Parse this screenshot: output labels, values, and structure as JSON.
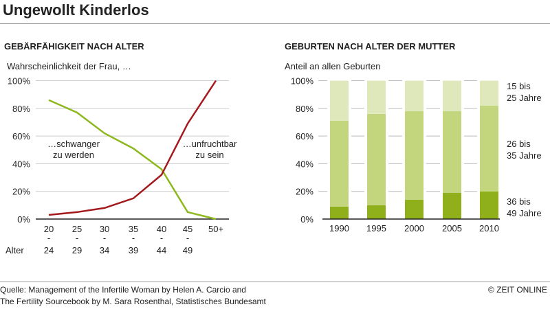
{
  "title": "Ungewollt Kinderlos",
  "source_lines": [
    "Quelle: Management of the Infertile Woman by Helen A. Carcio and",
    "The Fertility Sourcebook by M. Sara Rosenthal, Statistisches Bundesamt"
  ],
  "credit": "© ZEIT ONLINE",
  "chart_data": [
    {
      "type": "line",
      "title": "GEBÄRFÄHIGKEIT NACH ALTER",
      "subtitle": "Wahrscheinlichkeit der Frau, …",
      "xlabel": "Alter",
      "categories": [
        [
          "20",
          "-",
          "24"
        ],
        [
          "25",
          "-",
          "29"
        ],
        [
          "30",
          "-",
          "34"
        ],
        [
          "35",
          "-",
          "39"
        ],
        [
          "40",
          "-",
          "44"
        ],
        [
          "45",
          "-",
          "49"
        ],
        [
          "50+",
          "",
          ""
        ]
      ],
      "yticks": [
        "0%",
        "20%",
        "40%",
        "60%",
        "80%",
        "100%"
      ],
      "ylim": [
        0,
        100
      ],
      "grid": true,
      "series": [
        {
          "name": "…schwanger zu werden",
          "label_lines": [
            "…schwanger",
            "zu werden"
          ],
          "color": "#8db81e",
          "values": [
            86,
            77,
            62,
            51,
            36,
            5,
            0
          ]
        },
        {
          "name": "…unfruchtbar zu sein",
          "label_lines": [
            "…unfruchtbar",
            "zu sein"
          ],
          "color": "#a3191c",
          "values": [
            3,
            5,
            8,
            15,
            32,
            69,
            100
          ]
        }
      ]
    },
    {
      "type": "bar",
      "stacked": true,
      "title": "GEBURTEN NACH ALTER DER MUTTER",
      "subtitle": "Anteil an allen Geburten",
      "categories": [
        "1990",
        "1995",
        "2000",
        "2005",
        "2010"
      ],
      "yticks": [
        "0%",
        "20%",
        "40%",
        "60%",
        "80%",
        "100%"
      ],
      "ylim": [
        0,
        100
      ],
      "series": [
        {
          "name": "36 bis 49 Jahre",
          "label_lines": [
            "36 bis",
            "49 Jahre"
          ],
          "color": "#8fb01a",
          "values": [
            9,
            10,
            14,
            19,
            20
          ]
        },
        {
          "name": "26 bis 35 Jahre",
          "label_lines": [
            "26 bis",
            "35 Jahre"
          ],
          "color": "#c3d67e",
          "values": [
            62,
            66,
            64,
            59,
            62
          ]
        },
        {
          "name": "15 bis 25 Jahre",
          "label_lines": [
            "15 bis",
            "25 Jahre"
          ],
          "color": "#dfe8bb",
          "values": [
            29,
            24,
            22,
            22,
            18
          ]
        }
      ]
    }
  ]
}
